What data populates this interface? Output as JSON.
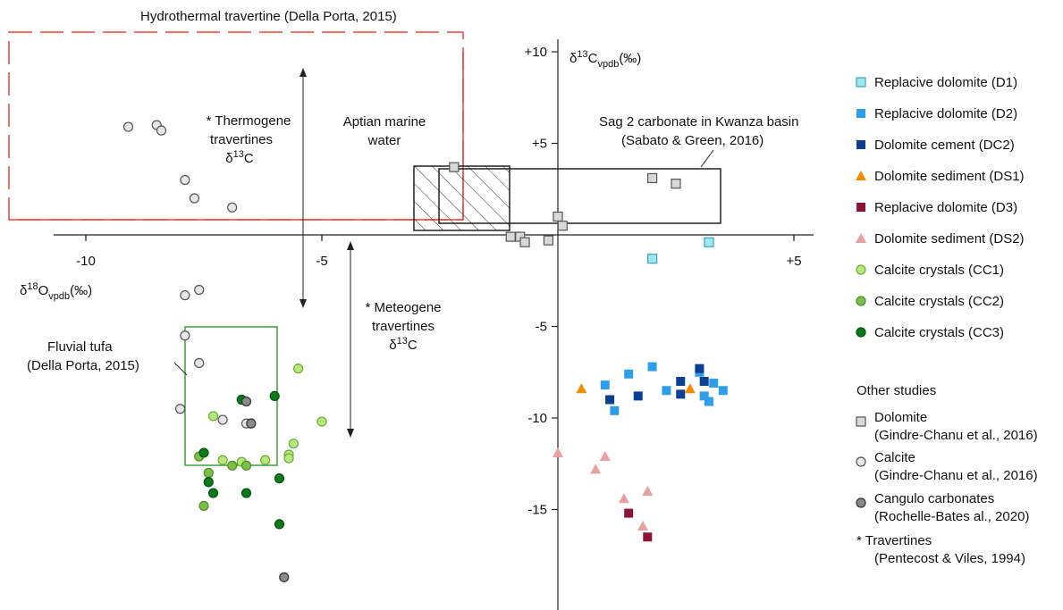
{
  "chart_data": {
    "type": "scatter",
    "x_axis": {
      "label": "δ18Ovpdb(‰)",
      "label_base": "δ",
      "label_sup": "18",
      "label_main": "O",
      "label_sub": "vpdb",
      "label_unit": "(‰)",
      "xlim": [
        -11.8,
        5.2
      ],
      "ticks": [
        -10,
        -5,
        5
      ],
      "tick_labels": [
        "-10",
        "-5",
        "+5"
      ]
    },
    "y_axis": {
      "label": "δ13Cvpdb(‰)",
      "label_base": "δ",
      "label_sup": "13",
      "label_main": "C",
      "label_sub": "vpdb",
      "label_unit": "(‰)",
      "ylim": [
        -20,
        11.5
      ],
      "ticks": [
        10,
        5,
        -5,
        -10,
        -15
      ],
      "tick_labels": [
        "+10",
        "+5",
        "-5",
        "-10",
        "-15"
      ]
    },
    "series": [
      {
        "name": "Replacive dolomite (D1)",
        "marker": "square-open",
        "color": "#9fe8f0",
        "edge": "#3aa7b8",
        "points": [
          [
            2.0,
            -1.3
          ],
          [
            3.2,
            -0.4
          ]
        ]
      },
      {
        "name": "Replacive dolomite (D2)",
        "marker": "square",
        "color": "#2f9ee8",
        "points": [
          [
            2.0,
            -7.2
          ],
          [
            1.5,
            -7.6
          ],
          [
            1.0,
            -8.2
          ],
          [
            1.2,
            -9.6
          ],
          [
            2.3,
            -8.5
          ],
          [
            3.3,
            -8.1
          ],
          [
            3.5,
            -8.5
          ],
          [
            3.1,
            -8.8
          ],
          [
            3.2,
            -9.1
          ],
          [
            3.0,
            -7.5
          ]
        ]
      },
      {
        "name": "Dolomite cement (DC2)",
        "marker": "square",
        "color": "#0a3f91",
        "points": [
          [
            1.1,
            -9.0
          ],
          [
            1.7,
            -8.8
          ],
          [
            2.6,
            -8.0
          ],
          [
            2.6,
            -8.7
          ],
          [
            3.0,
            -7.3
          ],
          [
            3.1,
            -8.0
          ]
        ]
      },
      {
        "name": "Dolomite sediment (DS1)",
        "marker": "triangle",
        "color": "#f08c00",
        "points": [
          [
            0.5,
            -8.4
          ],
          [
            2.8,
            -8.4
          ]
        ]
      },
      {
        "name": "Replacive dolomite (D3)",
        "marker": "square",
        "color": "#8b1535",
        "points": [
          [
            1.5,
            -15.2
          ],
          [
            1.9,
            -16.5
          ]
        ]
      },
      {
        "name": "Dolomite sediment (DS2)",
        "marker": "triangle",
        "color": "#e8a0a0",
        "points": [
          [
            0.0,
            -11.9
          ],
          [
            1.0,
            -12.1
          ],
          [
            0.8,
            -12.8
          ],
          [
            1.4,
            -14.4
          ],
          [
            1.8,
            -15.9
          ],
          [
            1.9,
            -14.0
          ]
        ]
      },
      {
        "name": "Calcite crystals (CC1)",
        "marker": "circle",
        "color": "#b5ea7a",
        "edge": "#6ea83a",
        "points": [
          [
            -5.5,
            -7.3
          ],
          [
            -5.0,
            -10.2
          ],
          [
            -5.6,
            -11.4
          ],
          [
            -5.7,
            -12.0
          ],
          [
            -5.7,
            -12.2
          ],
          [
            -6.2,
            -12.3
          ],
          [
            -6.7,
            -12.4
          ],
          [
            -7.1,
            -12.3
          ],
          [
            -7.3,
            -9.9
          ],
          [
            -6.5,
            -10.3
          ]
        ]
      },
      {
        "name": "Calcite crystals (CC2)",
        "marker": "circle",
        "color": "#7cc043",
        "edge": "#4f8a2a",
        "points": [
          [
            -7.6,
            -12.1
          ],
          [
            -7.4,
            -13.0
          ],
          [
            -7.5,
            -14.8
          ],
          [
            -6.9,
            -12.6
          ],
          [
            -6.6,
            -12.6
          ]
        ]
      },
      {
        "name": "Calcite crystals (CC3)",
        "marker": "circle",
        "color": "#0b7a1a",
        "edge": "#065210",
        "points": [
          [
            -6.7,
            -9.0
          ],
          [
            -6.0,
            -8.8
          ],
          [
            -7.5,
            -11.9
          ],
          [
            -7.4,
            -13.5
          ],
          [
            -7.3,
            -14.1
          ],
          [
            -6.6,
            -14.1
          ],
          [
            -5.9,
            -13.3
          ],
          [
            -5.9,
            -15.8
          ]
        ]
      },
      {
        "name": "Dolomite (Gindre-Chanu et al., 2016)",
        "marker": "square-open",
        "color": "#d8d8d8",
        "edge": "#555555",
        "points": [
          [
            -2.2,
            3.7
          ],
          [
            2.0,
            3.1
          ],
          [
            2.5,
            2.8
          ],
          [
            0.0,
            1.0
          ],
          [
            0.1,
            0.5
          ],
          [
            -1.0,
            -0.1
          ],
          [
            -0.8,
            -0.1
          ],
          [
            -0.7,
            -0.4
          ],
          [
            -0.2,
            -0.3
          ]
        ]
      },
      {
        "name": "Calcite (Gindre-Chanu et al., 2016)",
        "marker": "circle-open",
        "color": "#e6e6e6",
        "edge": "#555555",
        "points": [
          [
            -9.1,
            5.9
          ],
          [
            -8.5,
            6.0
          ],
          [
            -8.4,
            5.7
          ],
          [
            -7.9,
            3.0
          ],
          [
            -7.7,
            2.0
          ],
          [
            -6.9,
            1.5
          ],
          [
            -7.9,
            -3.3
          ],
          [
            -7.6,
            -3.0
          ],
          [
            -7.9,
            -5.5
          ],
          [
            -7.6,
            -7.0
          ],
          [
            -8.0,
            -9.5
          ],
          [
            -7.1,
            -10.1
          ],
          [
            -6.6,
            -10.3
          ]
        ]
      },
      {
        "name": "Cangulo carbonates (Rochelle-Bates al., 2020)",
        "marker": "circle",
        "color": "#8a8a8a",
        "edge": "#333333",
        "points": [
          [
            -6.6,
            -9.1
          ],
          [
            -6.5,
            -10.3
          ],
          [
            -5.8,
            -18.7
          ]
        ]
      }
    ],
    "regions": [
      {
        "name": "Hydrothermal travertine",
        "color": "#e8453c"
      },
      {
        "name": "Fluvial tufa",
        "color": "#3aa13a"
      },
      {
        "name": "Aptian marine water",
        "color": "#222222"
      },
      {
        "name": "Sag 2 carbonate in Kwanza basin",
        "color": "#222222"
      }
    ]
  },
  "annotations": {
    "hydrothermal": "Hydrothermal travertine (Della Porta, 2015)",
    "thermogene_1": "* Thermogene",
    "thermogene_2": "travertines",
    "thermogene_3": "δ",
    "thermogene_3_sup": "13",
    "thermogene_3_main": "C",
    "aptian_1": "Aptian marine",
    "aptian_2": "water",
    "sag_1": "Sag 2 carbonate in Kwanza basin",
    "sag_2": "(Sabato & Green, 2016)",
    "meteogene_1": "* Meteogene",
    "meteogene_2": "travertines",
    "meteogene_3": "δ",
    "meteogene_3_sup": "13",
    "meteogene_3_main": "C",
    "fluvial_1": "Fluvial tufa",
    "fluvial_2": "(Della Porta, 2015)"
  },
  "legend": {
    "items": [
      "Replacive dolomite (D1)",
      "Replacive dolomite (D2)",
      "Dolomite cement (DC2)",
      "Dolomite sediment (DS1)",
      "Replacive dolomite (D3)",
      "Dolomite sediment (DS2)",
      "Calcite crystals (CC1)",
      "Calcite crystals (CC2)",
      "Calcite crystals (CC3)"
    ],
    "other_studies_title": "Other studies",
    "other": [
      {
        "line1": "Dolomite",
        "line2": "(Gindre-Chanu et al., 2016)"
      },
      {
        "line1": "Calcite",
        "line2": "(Gindre-Chanu et al., 2016)"
      },
      {
        "line1": "Cangulo carbonates",
        "line2": "(Rochelle-Bates al., 2020)"
      }
    ],
    "travertines_1": "* Travertines",
    "travertines_2": "(Pentecost & Viles, 1994)"
  }
}
